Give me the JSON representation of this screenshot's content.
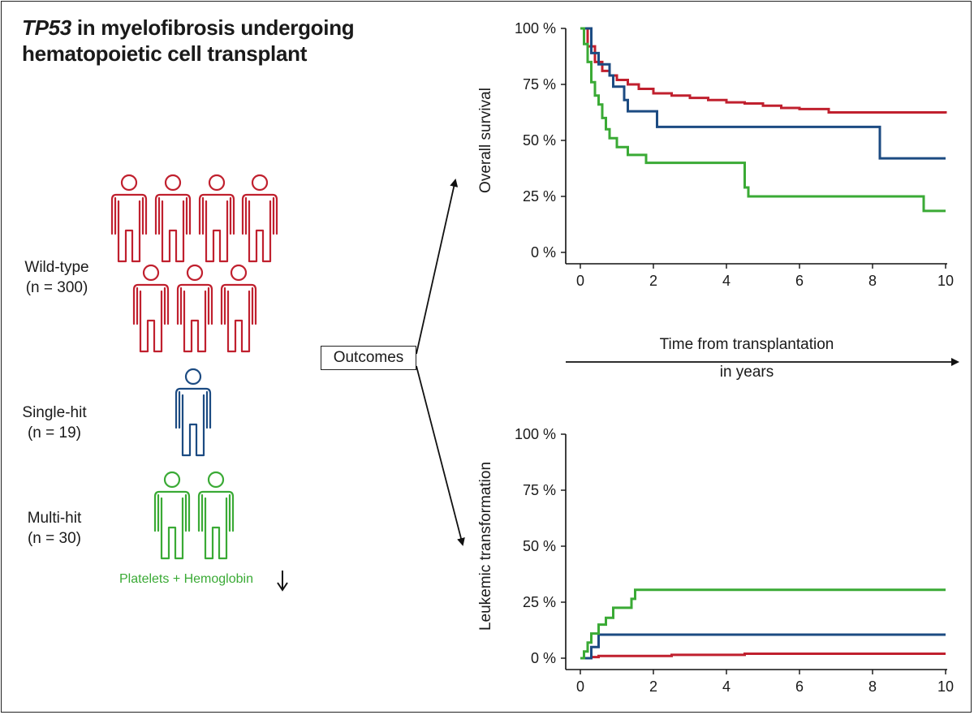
{
  "title": {
    "italic_part": "TP53",
    "rest_line1": " in myelofibrosis undergoing",
    "line2": "hematopoietic cell transplant"
  },
  "groups": [
    {
      "label_line1": "Wild-type",
      "label_line2": "(n = 300)",
      "color": "#c0202e",
      "icon": "person-icon",
      "figures": 7
    },
    {
      "label_line1": "Single-hit",
      "label_line2": "(n = 19)",
      "color": "#1c4b82",
      "icon": "person-icon",
      "figures": 1
    },
    {
      "label_line1": "Multi-hit",
      "label_line2": "(n = 30)",
      "color": "#3aaa35",
      "icon": "person-icon",
      "figures": 2
    }
  ],
  "note": {
    "text": "Platelets + Hemoglobin",
    "color": "#3aaa35",
    "icon": "down-arrow-icon"
  },
  "outcomes_label": "Outcomes",
  "time_axis": {
    "line1": "Time from transplantation",
    "line2": "in years"
  },
  "chart_data": [
    {
      "type": "line",
      "step": true,
      "ylabel": "Overall survival",
      "xlim": [
        0,
        10
      ],
      "ylim": [
        0,
        100
      ],
      "xticks": [
        0,
        2,
        4,
        6,
        8,
        10
      ],
      "yticks": [
        0,
        25,
        50,
        75,
        100
      ],
      "ytick_labels": [
        "0 %",
        "25 %",
        "50 %",
        "75 %",
        "100 %"
      ],
      "series": [
        {
          "color": "#c0202e",
          "points": [
            [
              0,
              100
            ],
            [
              0.2,
              92
            ],
            [
              0.4,
              85
            ],
            [
              0.6,
              81
            ],
            [
              0.8,
              79
            ],
            [
              1.0,
              77
            ],
            [
              1.3,
              75
            ],
            [
              1.6,
              73
            ],
            [
              2.0,
              71
            ],
            [
              2.5,
              70
            ],
            [
              3.0,
              69
            ],
            [
              3.5,
              68
            ],
            [
              4.0,
              67
            ],
            [
              4.5,
              66.5
            ],
            [
              5.0,
              65.5
            ],
            [
              5.5,
              64.5
            ],
            [
              6.0,
              64
            ],
            [
              6.8,
              62.5
            ],
            [
              10,
              62
            ]
          ]
        },
        {
          "color": "#1c4b82",
          "points": [
            [
              0,
              100
            ],
            [
              0.3,
              89
            ],
            [
              0.5,
              84
            ],
            [
              0.8,
              79
            ],
            [
              0.9,
              74
            ],
            [
              1.2,
              68
            ],
            [
              1.3,
              63
            ],
            [
              2.1,
              63
            ],
            [
              2.1,
              56
            ],
            [
              8.2,
              56
            ],
            [
              8.2,
              42
            ],
            [
              10,
              42
            ]
          ]
        },
        {
          "color": "#3aaa35",
          "points": [
            [
              0,
              100
            ],
            [
              0.1,
              93
            ],
            [
              0.2,
              85
            ],
            [
              0.3,
              76
            ],
            [
              0.4,
              70
            ],
            [
              0.5,
              66
            ],
            [
              0.6,
              60
            ],
            [
              0.7,
              55
            ],
            [
              0.8,
              51
            ],
            [
              1.0,
              47
            ],
            [
              1.3,
              43.5
            ],
            [
              1.8,
              40
            ],
            [
              4.4,
              40
            ],
            [
              4.5,
              29
            ],
            [
              4.6,
              25
            ],
            [
              9.4,
              25
            ],
            [
              9.4,
              18.5
            ],
            [
              10,
              18.5
            ]
          ]
        }
      ]
    },
    {
      "type": "line",
      "step": true,
      "ylabel": "Leukemic transformation",
      "xlim": [
        0,
        10
      ],
      "ylim": [
        0,
        100
      ],
      "xticks": [
        0,
        2,
        4,
        6,
        8,
        10
      ],
      "yticks": [
        0,
        25,
        50,
        75,
        100
      ],
      "ytick_labels": [
        "0 %",
        "25 %",
        "50 %",
        "75 %",
        "100 %"
      ],
      "series": [
        {
          "color": "#c0202e",
          "points": [
            [
              0,
              0
            ],
            [
              0.3,
              0.5
            ],
            [
              0.5,
              1
            ],
            [
              2.5,
              1
            ],
            [
              2.5,
              1.5
            ],
            [
              4.5,
              1.5
            ],
            [
              4.5,
              2
            ],
            [
              10,
              2
            ]
          ]
        },
        {
          "color": "#1c4b82",
          "points": [
            [
              0,
              0
            ],
            [
              0.3,
              0
            ],
            [
              0.3,
              5
            ],
            [
              0.5,
              5
            ],
            [
              0.5,
              10.5
            ],
            [
              10,
              10.5
            ]
          ]
        },
        {
          "color": "#3aaa35",
          "points": [
            [
              0,
              0
            ],
            [
              0.1,
              3
            ],
            [
              0.2,
              7
            ],
            [
              0.3,
              11
            ],
            [
              0.5,
              15
            ],
            [
              0.7,
              18
            ],
            [
              0.9,
              22.5
            ],
            [
              1.4,
              26.5
            ],
            [
              1.5,
              30.5
            ],
            [
              10,
              30.5
            ]
          ]
        }
      ]
    }
  ]
}
